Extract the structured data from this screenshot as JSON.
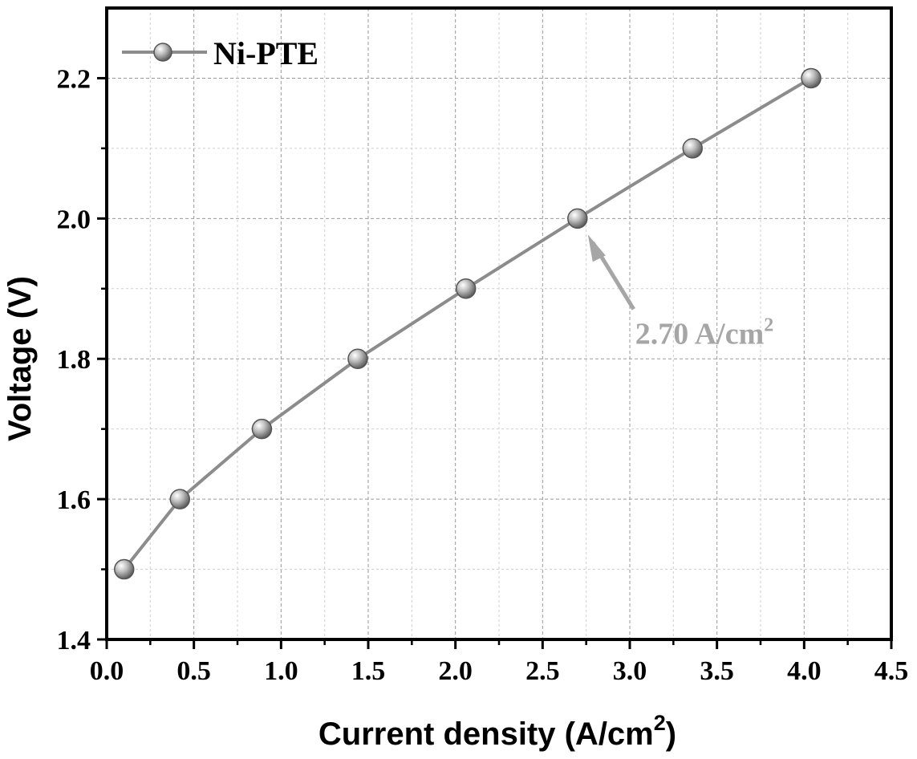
{
  "chart_data": {
    "type": "line",
    "xlabel": "Current density (A/cm",
    "xlabel_sup": "2",
    "xlabel_end": ")",
    "ylabel": "Voltage (V)",
    "xlim": [
      0.0,
      4.5
    ],
    "ylim": [
      1.4,
      2.3
    ],
    "x_major_ticks": [
      0.0,
      0.5,
      1.0,
      1.5,
      2.0,
      2.5,
      3.0,
      3.5,
      4.0,
      4.5
    ],
    "x_tick_labels": [
      "0.0",
      "0.5",
      "1.0",
      "1.5",
      "2.0",
      "2.5",
      "3.0",
      "3.5",
      "4.0",
      "4.5"
    ],
    "y_major_ticks": [
      1.4,
      1.6,
      1.8,
      2.0,
      2.2
    ],
    "y_tick_labels": [
      "1.4",
      "1.6",
      "1.8",
      "2.0",
      "2.2"
    ],
    "grid": true,
    "legend_position": "top-left",
    "series": [
      {
        "name": "Ni-PTE",
        "color": "#8c8c8c",
        "x": [
          0.1,
          0.42,
          0.89,
          1.44,
          2.06,
          2.7,
          3.36,
          4.04
        ],
        "y": [
          1.5,
          1.6,
          1.7,
          1.8,
          1.9,
          2.0,
          2.1,
          2.2
        ]
      }
    ],
    "annotation": {
      "text": "2.70 A/cm",
      "sup": "2",
      "color": "#a6a6a6",
      "target_x": 2.7,
      "target_y": 2.0
    }
  }
}
